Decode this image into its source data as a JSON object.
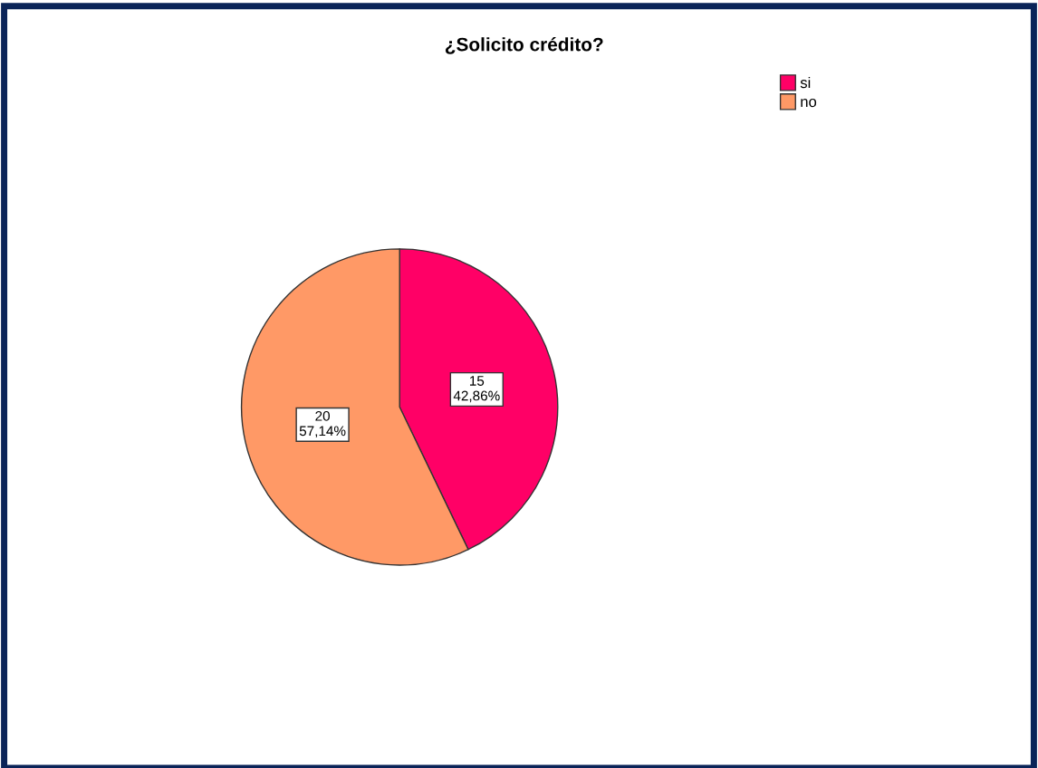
{
  "chart_data": {
    "type": "pie",
    "title": "¿Solicito crédito?",
    "categories": [
      "si",
      "no"
    ],
    "values": [
      15,
      20
    ],
    "colors": [
      "#ff0066",
      "#ff9966"
    ],
    "value_labels": [
      "15\n42,86%",
      "20\n57,14%"
    ],
    "legend": "top right"
  }
}
